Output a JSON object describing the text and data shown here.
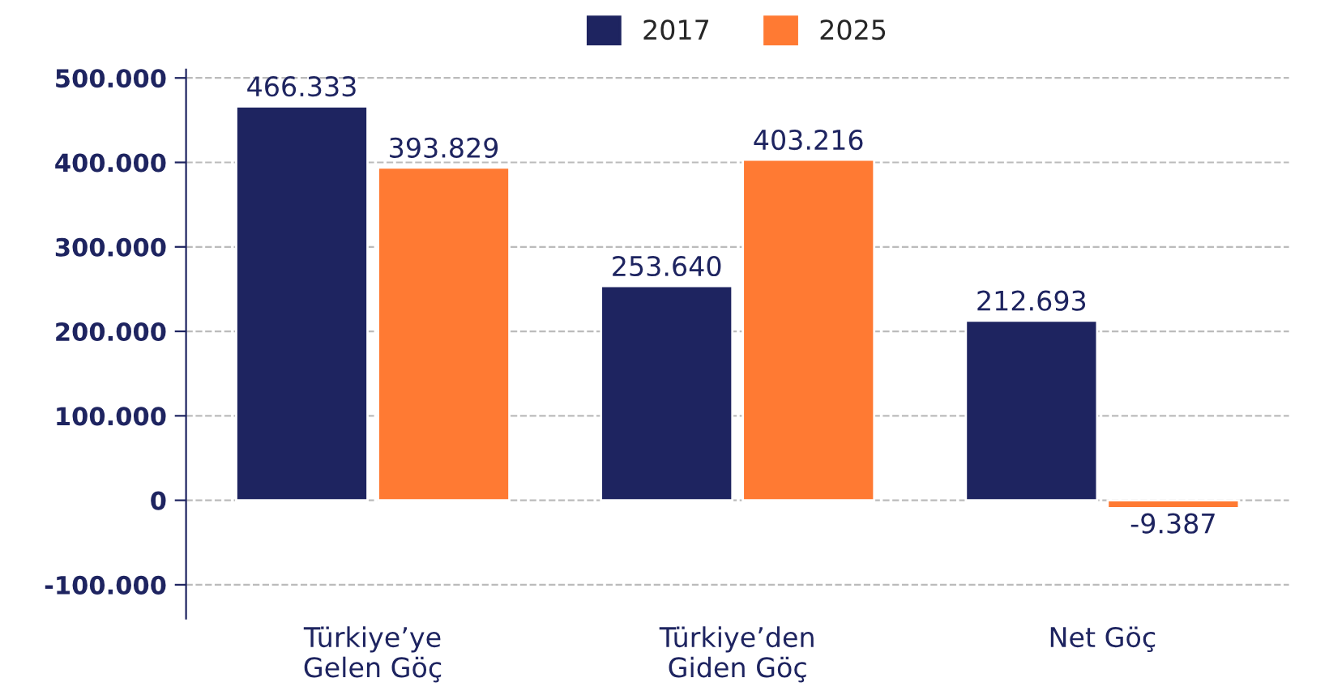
{
  "chart_data": {
    "type": "bar",
    "categories": [
      "Türkiye’ye\nGelen Göç",
      "Türkiye’den\nGiden Göç",
      "Net Göç"
    ],
    "series": [
      {
        "name": "2017",
        "color": "#1e2460",
        "values": [
          466333,
          253640,
          212693
        ],
        "value_labels": [
          "466.333",
          "253.640",
          "212.693"
        ]
      },
      {
        "name": "2025",
        "color": "#ff7a33",
        "values": [
          393829,
          403216,
          -9387
        ],
        "value_labels": [
          "393.829",
          "403.216",
          "-9.387"
        ]
      }
    ],
    "ylim": [
      -140000,
      510000
    ],
    "yticks": [
      {
        "value": -100000,
        "label": "-100.000"
      },
      0,
      {
        "value": 100000,
        "label": "100.000"
      },
      {
        "value": 200000,
        "label": "200.000"
      },
      {
        "value": 300000,
        "label": "300.000"
      },
      {
        "value": 400000,
        "label": "400.000"
      },
      {
        "value": 500000,
        "label": "500.000"
      }
    ],
    "grid": "y",
    "legend": "top"
  }
}
